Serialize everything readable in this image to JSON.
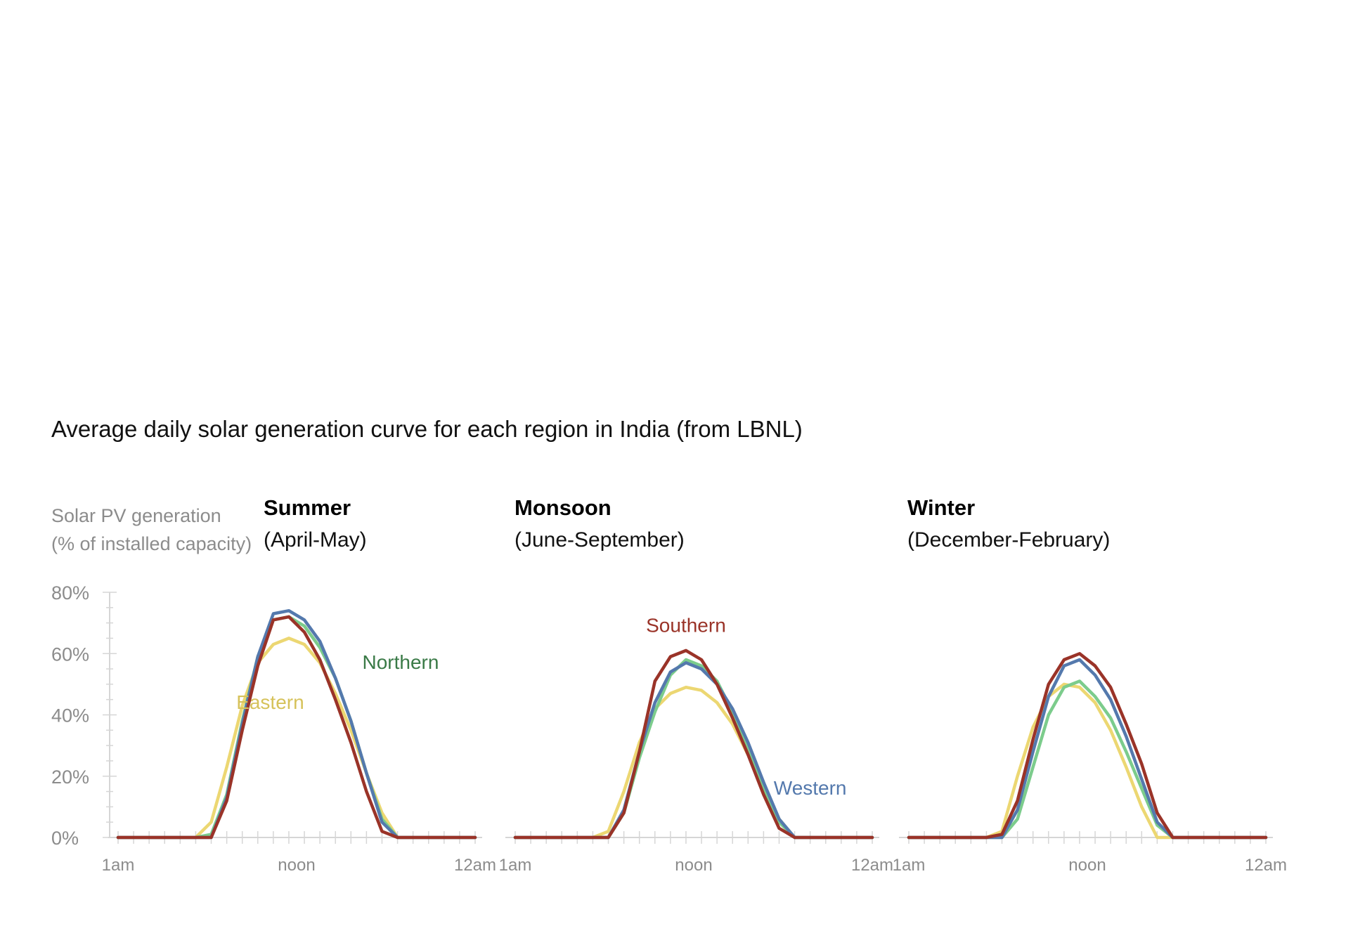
{
  "title": "Average daily solar generation curve for each region in India (from LBNL)",
  "ylabel_line1": "Solar PV generation",
  "ylabel_line2": "(% of installed capacity)",
  "colors": {
    "Northern": "#7ccc8c",
    "Southern": "#9a3328",
    "Eastern": "#ecd772",
    "Western": "#5479ad",
    "Northern_label": "#3a7a47",
    "Southern_label": "#9a3328",
    "Eastern_label": "#d6c25a",
    "Western_label": "#5479ad",
    "axis": "#d6d6d6"
  },
  "chart_data": [
    {
      "type": "line",
      "title": "Summer",
      "subtitle": "(April-May)",
      "x_tick_labels": [
        "1am",
        "noon",
        "12am"
      ],
      "y_ticks": [
        "0%",
        "20%",
        "40%",
        "60%",
        "80%"
      ],
      "ylim": [
        0,
        80
      ],
      "x": [
        1,
        2,
        3,
        4,
        5,
        6,
        7,
        8,
        9,
        10,
        11,
        12,
        13,
        14,
        15,
        16,
        17,
        18,
        19,
        20,
        21,
        22,
        23,
        24
      ],
      "series": [
        {
          "name": "Northern",
          "values": [
            0,
            0,
            0,
            0,
            0,
            0,
            1,
            14,
            38,
            59,
            71,
            72,
            69,
            62,
            52,
            38,
            21,
            6,
            0,
            0,
            0,
            0,
            0,
            0
          ]
        },
        {
          "name": "Southern",
          "values": [
            0,
            0,
            0,
            0,
            0,
            0,
            0,
            12,
            35,
            56,
            71,
            72,
            67,
            58,
            45,
            31,
            15,
            2,
            0,
            0,
            0,
            0,
            0,
            0
          ]
        },
        {
          "name": "Eastern",
          "values": [
            0,
            0,
            0,
            0,
            0,
            0,
            5,
            23,
            43,
            57,
            63,
            65,
            63,
            57,
            47,
            35,
            21,
            8,
            0,
            0,
            0,
            0,
            0,
            0
          ]
        },
        {
          "name": "Western",
          "values": [
            0,
            0,
            0,
            0,
            0,
            0,
            0,
            13,
            37,
            59,
            73,
            74,
            71,
            64,
            52,
            38,
            21,
            5,
            0,
            0,
            0,
            0,
            0,
            0
          ]
        }
      ],
      "labels": [
        {
          "name": "Northern",
          "x": 19.2,
          "y": 55
        },
        {
          "name": "Eastern",
          "x": 10.8,
          "y": 42
        }
      ]
    },
    {
      "type": "line",
      "title": "Monsoon",
      "subtitle": "(June-September)",
      "x_tick_labels": [
        "1am",
        "noon",
        "12am"
      ],
      "y_ticks": [
        "0%",
        "20%",
        "40%",
        "60%",
        "80%"
      ],
      "ylim": [
        0,
        80
      ],
      "x": [
        1,
        2,
        3,
        4,
        5,
        6,
        7,
        8,
        9,
        10,
        11,
        12,
        13,
        14,
        15,
        16,
        17,
        18,
        19,
        20,
        21,
        22,
        23,
        24
      ],
      "series": [
        {
          "name": "Northern",
          "values": [
            0,
            0,
            0,
            0,
            0,
            0,
            0,
            8,
            26,
            41,
            53,
            58,
            56,
            51,
            41,
            29,
            16,
            5,
            0,
            0,
            0,
            0,
            0,
            0
          ]
        },
        {
          "name": "Southern",
          "values": [
            0,
            0,
            0,
            0,
            0,
            0,
            0,
            8,
            28,
            51,
            59,
            61,
            58,
            50,
            39,
            27,
            14,
            3,
            0,
            0,
            0,
            0,
            0,
            0
          ]
        },
        {
          "name": "Eastern",
          "values": [
            0,
            0,
            0,
            0,
            0,
            0,
            2,
            15,
            31,
            42,
            47,
            49,
            48,
            44,
            37,
            27,
            16,
            6,
            0,
            0,
            0,
            0,
            0,
            0
          ]
        },
        {
          "name": "Western",
          "values": [
            0,
            0,
            0,
            0,
            0,
            0,
            0,
            9,
            28,
            44,
            54,
            57,
            55,
            50,
            42,
            31,
            18,
            6,
            0,
            0,
            0,
            0,
            0,
            0
          ]
        }
      ],
      "labels": [
        {
          "name": "Southern",
          "x": 12.0,
          "y": 67
        },
        {
          "name": "Western",
          "x": 20.0,
          "y": 14
        }
      ]
    },
    {
      "type": "line",
      "title": "Winter",
      "subtitle": "(December-February)",
      "x_tick_labels": [
        "1am",
        "noon",
        "12am"
      ],
      "y_ticks": [
        "0%",
        "20%",
        "40%",
        "60%",
        "80%"
      ],
      "ylim": [
        0,
        80
      ],
      "x": [
        1,
        2,
        3,
        4,
        5,
        6,
        7,
        8,
        9,
        10,
        11,
        12,
        13,
        14,
        15,
        16,
        17,
        18,
        19,
        20,
        21,
        22,
        23,
        24
      ],
      "series": [
        {
          "name": "Northern",
          "values": [
            0,
            0,
            0,
            0,
            0,
            0,
            0,
            6,
            23,
            40,
            49,
            51,
            46,
            39,
            28,
            16,
            4,
            0,
            0,
            0,
            0,
            0,
            0,
            0
          ]
        },
        {
          "name": "Southern",
          "values": [
            0,
            0,
            0,
            0,
            0,
            0,
            1,
            12,
            32,
            50,
            58,
            60,
            56,
            49,
            37,
            24,
            8,
            0,
            0,
            0,
            0,
            0,
            0,
            0
          ]
        },
        {
          "name": "Eastern",
          "values": [
            0,
            0,
            0,
            0,
            0,
            0,
            2,
            20,
            36,
            46,
            50,
            49,
            44,
            35,
            23,
            10,
            0,
            0,
            0,
            0,
            0,
            0,
            0,
            0
          ]
        },
        {
          "name": "Western",
          "values": [
            0,
            0,
            0,
            0,
            0,
            0,
            0,
            9,
            28,
            46,
            56,
            58,
            53,
            45,
            33,
            19,
            5,
            0,
            0,
            0,
            0,
            0,
            0,
            0
          ]
        }
      ],
      "labels": []
    }
  ]
}
